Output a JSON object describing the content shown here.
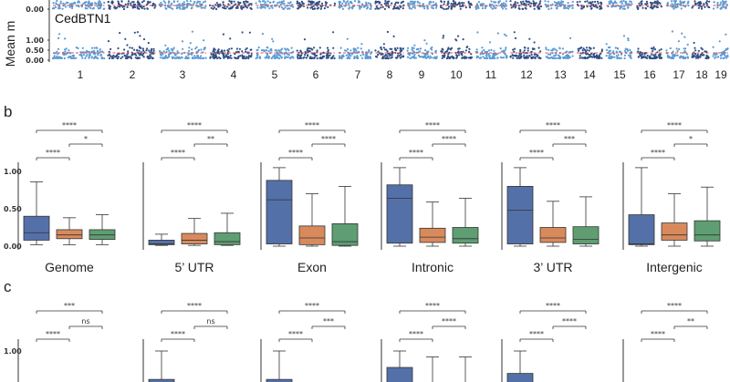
{
  "panel_a": {
    "ylabel": "Mean m",
    "track_label": "CedBTN1",
    "tick_labels_top": [
      "0.00"
    ],
    "tick_labels_bottom": [
      "1.00",
      "0.50",
      "0.00"
    ],
    "chromosomes": [
      "1",
      "2",
      "3",
      "4",
      "5",
      "6",
      "7",
      "8",
      "9",
      "10",
      "11",
      "12",
      "13",
      "14",
      "15",
      "16",
      "17",
      "18",
      "19"
    ],
    "colors": {
      "dark": "#2f4f86",
      "light": "#5b9bd5",
      "mean": "#d9534f"
    }
  },
  "panel_b": {
    "letter": "b"
  },
  "panel_c": {
    "letter": "c"
  },
  "colors": {
    "genome": "#5470a8",
    "te1": "#d98a5c",
    "te2": "#5e9e72",
    "line": "#333333"
  },
  "chart_data": [
    {
      "type": "boxplot",
      "panel": "b",
      "ylim": [
        0,
        1.1
      ],
      "yticks": [
        "0.00",
        "0.50",
        "1.00"
      ],
      "groups": [
        {
          "label": "Genome",
          "sig": {
            "outer": "****",
            "left": "****",
            "right": "*"
          },
          "boxes": [
            {
              "min": 0.02,
              "q1": 0.08,
              "median": 0.18,
              "q3": 0.4,
              "max": 0.86
            },
            {
              "min": 0.02,
              "q1": 0.1,
              "median": 0.15,
              "q3": 0.22,
              "max": 0.38
            },
            {
              "min": 0.02,
              "q1": 0.09,
              "median": 0.15,
              "q3": 0.22,
              "max": 0.42
            }
          ]
        },
        {
          "label": "5’ UTR",
          "sig": {
            "outer": "****",
            "left": "****",
            "right": "**"
          },
          "boxes": [
            {
              "min": 0.01,
              "q1": 0.02,
              "median": 0.03,
              "q3": 0.08,
              "max": 0.16
            },
            {
              "min": 0.01,
              "q1": 0.03,
              "median": 0.08,
              "q3": 0.17,
              "max": 0.37
            },
            {
              "min": 0.01,
              "q1": 0.02,
              "median": 0.06,
              "q3": 0.18,
              "max": 0.44
            }
          ]
        },
        {
          "label": "Exon",
          "sig": {
            "outer": "****",
            "left": "****",
            "right": "****"
          },
          "boxes": [
            {
              "min": 0.0,
              "q1": 0.03,
              "median": 0.62,
              "q3": 0.88,
              "max": 1.05
            },
            {
              "min": 0.0,
              "q1": 0.02,
              "median": 0.11,
              "q3": 0.27,
              "max": 0.7
            },
            {
              "min": 0.0,
              "q1": 0.01,
              "median": 0.06,
              "q3": 0.3,
              "max": 0.8
            }
          ]
        },
        {
          "label": "Intronic",
          "sig": {
            "outer": "****",
            "left": "****",
            "right": "****"
          },
          "boxes": [
            {
              "min": 0.0,
              "q1": 0.04,
              "median": 0.64,
              "q3": 0.82,
              "max": 1.05
            },
            {
              "min": 0.0,
              "q1": 0.05,
              "median": 0.12,
              "q3": 0.24,
              "max": 0.59
            },
            {
              "min": 0.0,
              "q1": 0.04,
              "median": 0.1,
              "q3": 0.25,
              "max": 0.64
            }
          ]
        },
        {
          "label": "3’ UTR",
          "sig": {
            "outer": "****",
            "left": "****",
            "right": "***"
          },
          "boxes": [
            {
              "min": 0.0,
              "q1": 0.03,
              "median": 0.48,
              "q3": 0.8,
              "max": 1.05
            },
            {
              "min": 0.0,
              "q1": 0.05,
              "median": 0.11,
              "q3": 0.25,
              "max": 0.6
            },
            {
              "min": 0.0,
              "q1": 0.03,
              "median": 0.09,
              "q3": 0.26,
              "max": 0.66
            }
          ]
        },
        {
          "label": "Intergenic",
          "sig": {
            "outer": "****",
            "left": "****",
            "right": "*"
          },
          "boxes": [
            {
              "min": 0.0,
              "q1": 0.02,
              "median": 0.03,
              "q3": 0.42,
              "max": 1.05
            },
            {
              "min": 0.0,
              "q1": 0.08,
              "median": 0.15,
              "q3": 0.31,
              "max": 0.7
            },
            {
              "min": 0.0,
              "q1": 0.07,
              "median": 0.15,
              "q3": 0.34,
              "max": 0.79
            }
          ]
        }
      ]
    },
    {
      "type": "boxplot",
      "panel": "c",
      "ylim": [
        0,
        1.1
      ],
      "yticks": [
        "1.00"
      ],
      "groups": [
        {
          "sig": {
            "outer": "***",
            "left": "****",
            "right": "ns"
          },
          "whisker_top": [
            null,
            null,
            null
          ]
        },
        {
          "sig": {
            "outer": "****",
            "left": "****",
            "right": "ns"
          },
          "whisker_top": [
            1.0,
            null,
            null
          ]
        },
        {
          "sig": {
            "outer": "****",
            "left": "****",
            "right": "***"
          },
          "whisker_top": [
            1.0,
            null,
            null
          ]
        },
        {
          "sig": {
            "outer": "****",
            "left": "****",
            "right": "****"
          },
          "whisker_top": [
            1.0,
            0.92,
            0.92
          ]
        },
        {
          "sig": {
            "outer": "****",
            "left": "****",
            "right": "****"
          },
          "whisker_top": [
            1.0,
            null,
            null
          ]
        },
        {
          "sig": {
            "outer": "****",
            "left": "****",
            "right": "**"
          },
          "whisker_top": [
            null,
            null,
            null
          ]
        }
      ]
    }
  ]
}
